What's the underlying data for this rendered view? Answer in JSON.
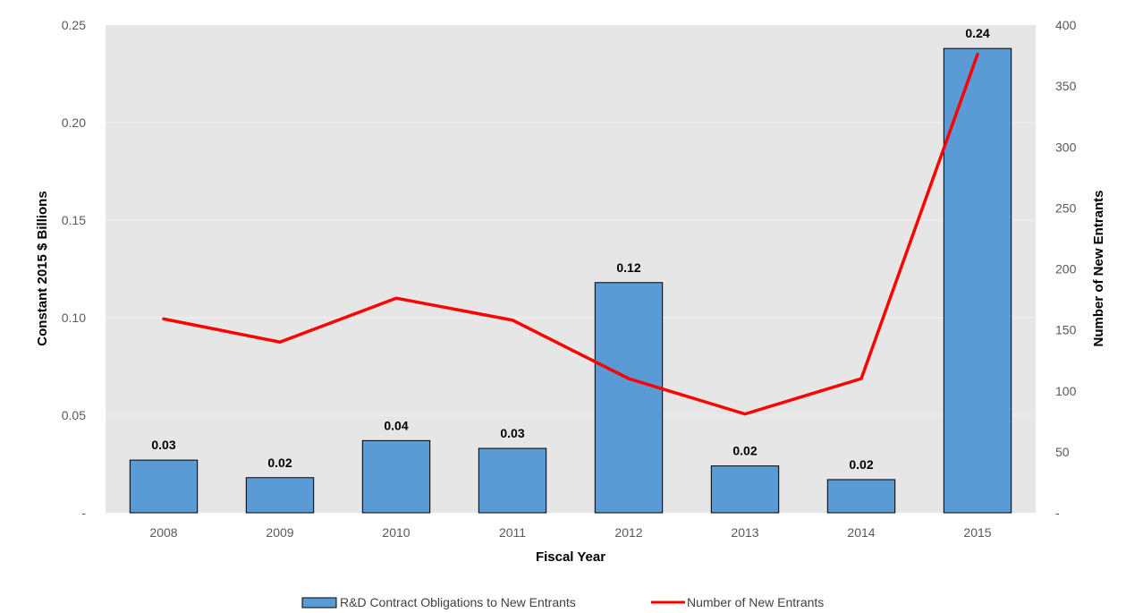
{
  "colors": {
    "plot_background": "#e6e6e6",
    "gridline": "#f2f2f2",
    "bar_fill": "#5b9bd5",
    "bar_stroke": "#000000",
    "line": "#ff0000"
  },
  "chart_data": {
    "type": "bar",
    "categories": [
      "2008",
      "2009",
      "2010",
      "2011",
      "2012",
      "2013",
      "2014",
      "2015"
    ],
    "series": [
      {
        "name": "R&D Contract Obligations to New Entrants",
        "type": "bar",
        "axis": "left",
        "values": [
          0.027,
          0.018,
          0.037,
          0.033,
          0.118,
          0.024,
          0.017,
          0.238
        ],
        "labels": [
          "0.03",
          "0.02",
          "0.04",
          "0.03",
          "0.12",
          "0.02",
          "0.02",
          "0.24"
        ]
      },
      {
        "name": "Number of New Entrants",
        "type": "line",
        "axis": "right",
        "values": [
          159,
          140,
          176,
          158,
          110,
          81,
          110,
          376
        ]
      }
    ],
    "xlabel": "Fiscal Year",
    "ylabel": "Constant 2015 $ Billions",
    "y2label": "Number of New Entrants",
    "ylim": [
      0,
      0.25
    ],
    "y2lim": [
      0,
      400
    ],
    "yticks": [
      "-",
      "0.05",
      "0.10",
      "0.15",
      "0.20",
      "0.25"
    ],
    "y2ticks": [
      "-",
      "50",
      "100",
      "150",
      "200",
      "250",
      "300",
      "350",
      "400"
    ],
    "grid": true,
    "legend_position": "bottom"
  }
}
